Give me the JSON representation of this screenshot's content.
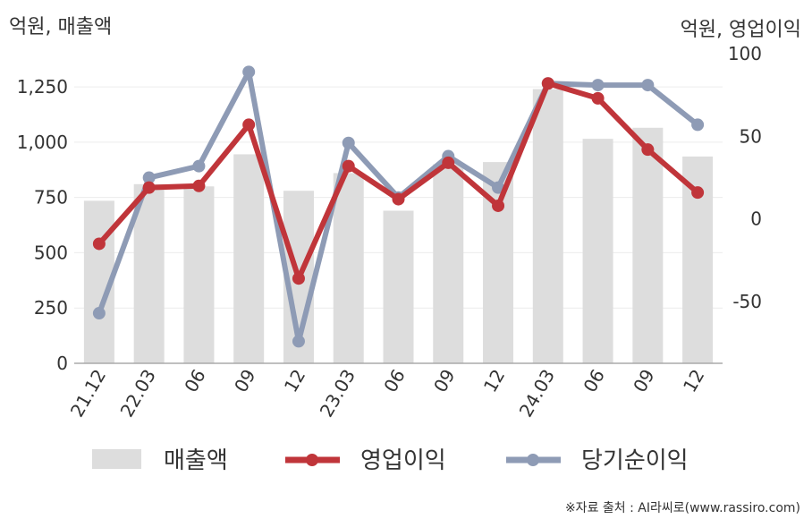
{
  "chart_data": {
    "type": "bar",
    "left_axis_unit": "억원, 매출액",
    "right_axis_unit": "억원, 영업이익",
    "categories": [
      "21.12",
      "22.03",
      "06",
      "09",
      "12",
      "23.03",
      "06",
      "09",
      "12",
      "24.03",
      "06",
      "09",
      "12"
    ],
    "left_axis": {
      "ylim": [
        0,
        1400
      ],
      "ticks": [
        0,
        250,
        500,
        750,
        1000,
        1250
      ],
      "tick_labels": [
        "0",
        "250",
        "500",
        "750",
        "1,000",
        "1,250"
      ]
    },
    "right_axis": {
      "ylim": [
        -87.3,
        100
      ],
      "ticks": [
        -50,
        0,
        50,
        100
      ],
      "tick_labels": [
        "-50",
        "0",
        "50",
        "100"
      ]
    },
    "series": [
      {
        "name": "매출액",
        "kind": "bar",
        "axis": "left",
        "color": "#dddddd",
        "values": [
          735,
          810,
          800,
          945,
          780,
          860,
          690,
          900,
          910,
          1240,
          1015,
          1065,
          935
        ]
      },
      {
        "name": "영업이익",
        "kind": "line",
        "axis": "right",
        "color": "#c0353a",
        "values": [
          -15,
          19,
          20,
          57,
          -36,
          32,
          12,
          34,
          8,
          82,
          73,
          42,
          16
        ]
      },
      {
        "name": "당기순이익",
        "kind": "line",
        "axis": "right",
        "color": "#8e9bb5",
        "values": [
          -57,
          25,
          32,
          89,
          -74,
          46,
          13,
          38,
          19,
          82,
          81,
          81,
          57
        ]
      }
    ],
    "grid": true,
    "legend_position": "bottom",
    "source": "※자료 출처 : AI라씨로(www.rassiro.com)"
  }
}
